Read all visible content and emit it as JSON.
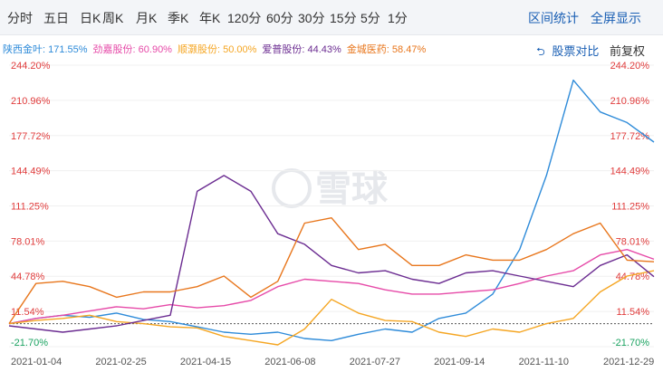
{
  "tabs": [
    "分时",
    "五日",
    "日K",
    "周K",
    "月K",
    "季K",
    "年K",
    "120分",
    "60分",
    "30分",
    "15分",
    "5分",
    "1分"
  ],
  "tabs_right": [
    "区间统计",
    "全屏显示"
  ],
  "legend": [
    {
      "name": "陕西金叶",
      "value": "171.55%",
      "color": "#2e8bd9"
    },
    {
      "name": "劲嘉股份",
      "value": "60.90%",
      "color": "#e64aa8"
    },
    {
      "name": "顺灏股份",
      "value": "50.00%",
      "color": "#f5a623"
    },
    {
      "name": "爱普股份",
      "value": "44.43%",
      "color": "#6b2c91"
    },
    {
      "name": "金城医药",
      "value": "58.47%",
      "color": "#e8761c"
    }
  ],
  "controls": {
    "compare": "股票对比",
    "adjust": "前复权"
  },
  "watermark": "雪球",
  "chart_data": {
    "type": "line",
    "ylim": [
      -21.7,
      244.2
    ],
    "y_ticks": [
      "244.20%",
      "210.96%",
      "177.72%",
      "144.49%",
      "111.25%",
      "78.01%",
      "44.78%",
      "11.54%",
      "-21.70%"
    ],
    "x_ticks": [
      "2021-01-04",
      "2021-02-25",
      "2021-04-15",
      "2021-06-08",
      "2021-07-27",
      "2021-09-14",
      "2021-11-10",
      "2021-12-29"
    ],
    "colors": {
      "up": "#e03c3c",
      "down": "#1aa260",
      "zero": "#333333"
    },
    "series": [
      {
        "name": "陕西金叶",
        "color": "#2e8bd9",
        "values": [
          0,
          5,
          8,
          6,
          10,
          4,
          2,
          -3,
          -8,
          -10,
          -8,
          -14,
          -16,
          -10,
          -5,
          -8,
          5,
          10,
          28,
          70,
          140,
          230,
          200,
          190,
          171.55
        ]
      },
      {
        "name": "劲嘉股份",
        "color": "#e64aa8",
        "values": [
          0,
          5,
          8,
          12,
          16,
          14,
          18,
          15,
          17,
          22,
          35,
          42,
          40,
          38,
          32,
          28,
          28,
          30,
          32,
          38,
          45,
          50,
          65,
          70,
          60.9
        ]
      },
      {
        "name": "顺灏股份",
        "color": "#f5a623",
        "values": [
          0,
          3,
          5,
          8,
          2,
          0,
          -3,
          -4,
          -12,
          -16,
          -20,
          -5,
          23,
          10,
          3,
          2,
          -8,
          -12,
          -5,
          -8,
          0,
          5,
          30,
          45,
          50.0
        ]
      },
      {
        "name": "爱普股份",
        "color": "#6b2c91",
        "values": [
          -2,
          -5,
          -8,
          -5,
          -2,
          3,
          8,
          125,
          140,
          125,
          85,
          75,
          55,
          48,
          50,
          42,
          38,
          48,
          50,
          45,
          40,
          35,
          55,
          65,
          44.43
        ]
      },
      {
        "name": "金城医药",
        "color": "#e8761c",
        "values": [
          0,
          38,
          40,
          35,
          25,
          30,
          30,
          35,
          45,
          25,
          40,
          95,
          100,
          70,
          75,
          55,
          55,
          65,
          60,
          60,
          70,
          85,
          95,
          60,
          58.47
        ]
      }
    ]
  }
}
